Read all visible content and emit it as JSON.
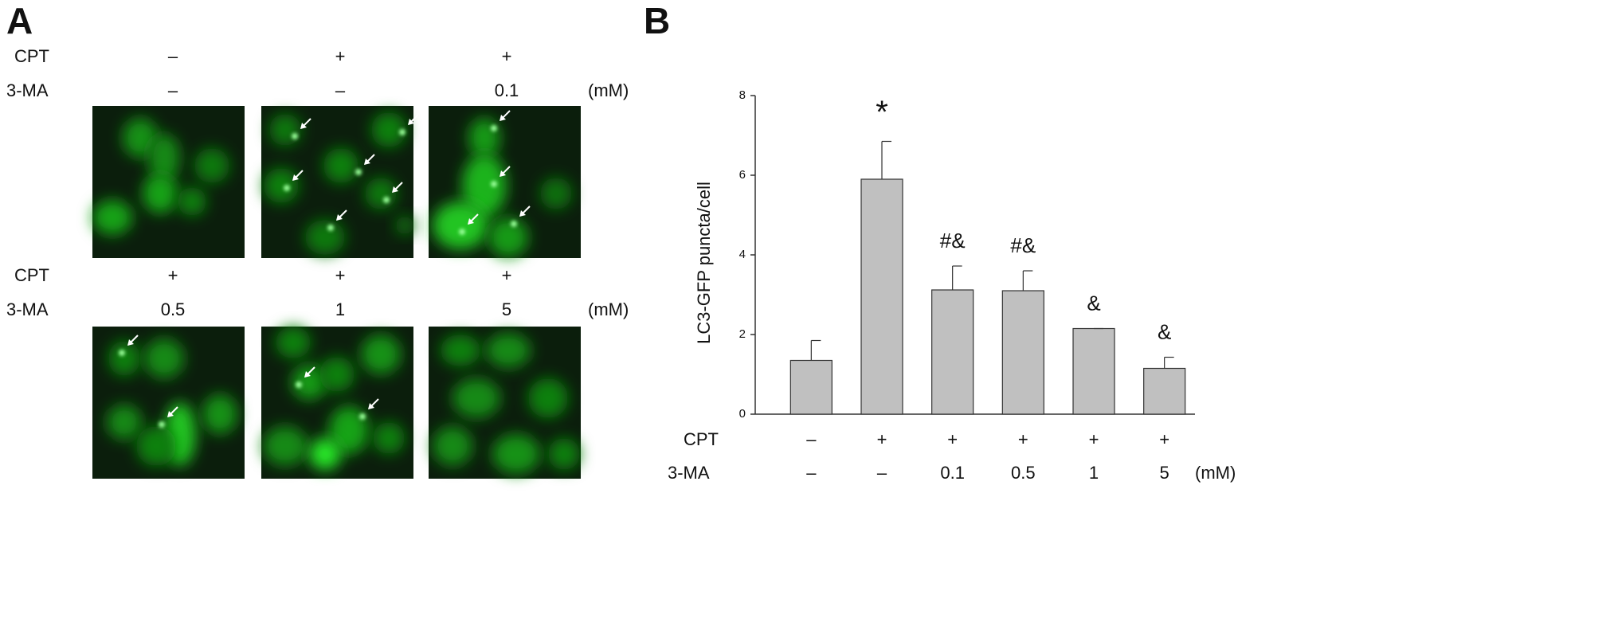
{
  "panel_a": {
    "label": "A",
    "rows": [
      {
        "cpt_label": "CPT",
        "ma_label": "3-MA",
        "unit": "(mM)",
        "cpt": [
          "–",
          "+",
          "+"
        ],
        "ma": [
          "–",
          "–",
          "0.1"
        ]
      },
      {
        "cpt_label": "CPT",
        "ma_label": "3-MA",
        "unit": "(mM)",
        "cpt": [
          "+",
          "+",
          "+"
        ],
        "ma": [
          "0.5",
          "1",
          "5"
        ]
      }
    ]
  },
  "chart_data": {
    "type": "bar",
    "panel_label": "B",
    "ylabel": "LC3-GFP puncta/cell",
    "category_rows": [
      {
        "name": "CPT",
        "labels": [
          "–",
          "+",
          "+",
          "+",
          "+",
          "+"
        ]
      },
      {
        "name": "3-MA",
        "labels": [
          "–",
          "–",
          "0.1",
          "0.5",
          "1",
          "5"
        ]
      }
    ],
    "unit": "(mM)",
    "values": [
      1.35,
      5.9,
      3.12,
      3.1,
      2.15,
      1.15
    ],
    "errors": [
      0.5,
      0.95,
      0.6,
      0.5,
      0,
      0.28
    ],
    "annotations": [
      null,
      "*",
      "#&",
      "#&",
      "&",
      "&"
    ],
    "color": "#c0c0c0",
    "ylim": [
      0,
      8
    ],
    "yticks": [
      0,
      2,
      4,
      6,
      8
    ]
  }
}
